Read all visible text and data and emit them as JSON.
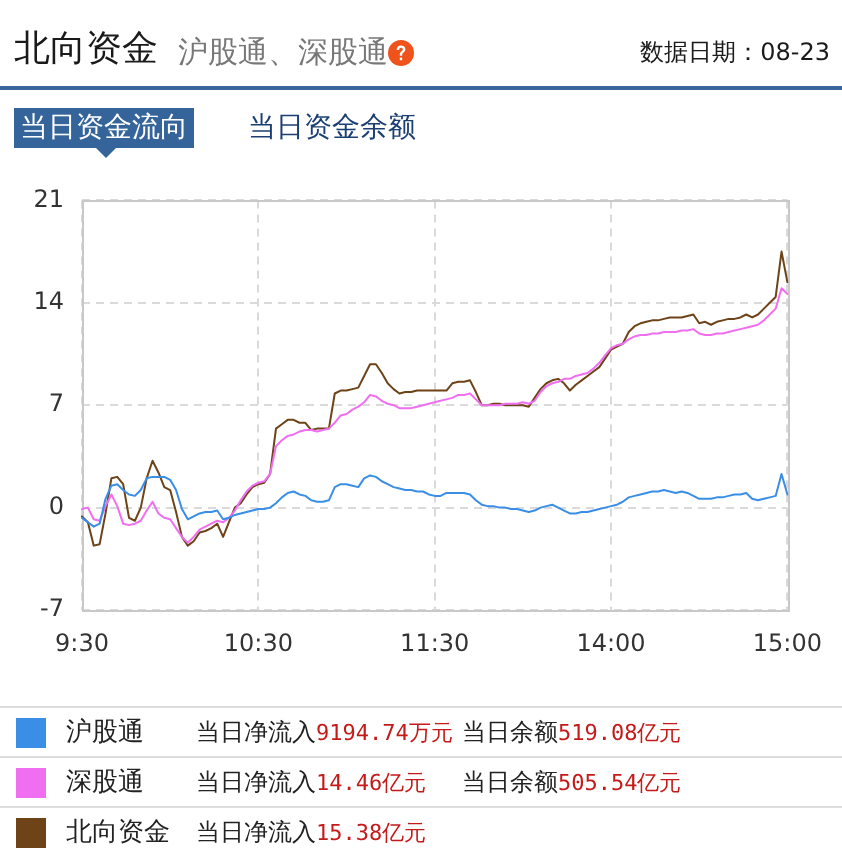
{
  "chart_data": {
    "type": "line",
    "title": "北向资金",
    "subtitle": "沪股通、深股通",
    "annotations": [
      "数据日期：08-23",
      "当日资金流向",
      "当日资金余额",
      "当日净流入9194.74万元",
      "当日余额519.08亿元",
      "当日净流入14.46亿元",
      "当日余额505.54亿元",
      "当日净流入15.38亿元"
    ],
    "categories": [
      "9:30",
      null,
      null,
      null,
      null,
      null,
      null,
      null,
      null,
      null,
      null,
      null,
      null,
      null,
      null,
      null,
      null,
      null,
      null,
      null,
      null,
      null,
      null,
      null,
      null,
      null,
      null,
      null,
      null,
      null,
      "10:30",
      null,
      null,
      null,
      null,
      null,
      null,
      null,
      null,
      null,
      null,
      null,
      null,
      null,
      null,
      null,
      null,
      null,
      null,
      null,
      null,
      null,
      null,
      null,
      null,
      null,
      null,
      null,
      null,
      null,
      "11:30",
      null,
      null,
      null,
      null,
      null,
      null,
      null,
      null,
      null,
      null,
      null,
      null,
      null,
      null,
      null,
      null,
      null,
      null,
      null,
      null,
      null,
      null,
      null,
      null,
      null,
      null,
      null,
      null,
      null,
      "14:00",
      null,
      null,
      null,
      null,
      null,
      null,
      null,
      null,
      null,
      null,
      null,
      null,
      null,
      null,
      null,
      null,
      null,
      null,
      null,
      null,
      null,
      null,
      null,
      null,
      null,
      null,
      null,
      null,
      null,
      "15:00"
    ],
    "ylim": [
      -7,
      21
    ],
    "yticks": [
      -7,
      0,
      7,
      14,
      21
    ],
    "grid": true,
    "legend": "bottom",
    "series": [
      {
        "name": "沪股通",
        "color": "#3a8ee6",
        "values": [
          -0.7,
          -1.0,
          -1.3,
          -1.1,
          0.6,
          1.5,
          1.6,
          1.2,
          0.9,
          0.8,
          1.2,
          2.0,
          2.1,
          2.1,
          2.1,
          1.9,
          1.2,
          -0.1,
          -0.8,
          -0.6,
          -0.4,
          -0.3,
          -0.3,
          -0.2,
          -0.8,
          -0.7,
          -0.5,
          -0.4,
          -0.3,
          -0.2,
          -0.1,
          -0.1,
          0.0,
          0.3,
          0.7,
          1.0,
          1.1,
          0.9,
          0.8,
          0.5,
          0.4,
          0.4,
          0.5,
          1.4,
          1.6,
          1.6,
          1.5,
          1.4,
          2.0,
          2.2,
          2.1,
          1.8,
          1.6,
          1.4,
          1.3,
          1.2,
          1.2,
          1.1,
          1.1,
          0.9,
          0.8,
          0.8,
          1.0,
          1.0,
          1.0,
          1.0,
          0.9,
          0.5,
          0.2,
          0.1,
          0.1,
          0.0,
          0.0,
          -0.1,
          -0.1,
          -0.2,
          -0.3,
          -0.2,
          0.0,
          0.1,
          0.2,
          0.0,
          -0.2,
          -0.4,
          -0.4,
          -0.3,
          -0.3,
          -0.2,
          -0.1,
          0.0,
          0.1,
          0.2,
          0.4,
          0.7,
          0.8,
          0.9,
          1.0,
          1.1,
          1.1,
          1.2,
          1.1,
          1.0,
          1.1,
          1.0,
          0.8,
          0.6,
          0.6,
          0.6,
          0.7,
          0.7,
          0.8,
          0.9,
          0.9,
          1.0,
          0.6,
          0.5,
          0.6,
          0.7,
          0.8,
          2.3,
          0.9
        ]
      },
      {
        "name": "深股通",
        "color": "#f06ef0",
        "values": [
          -0.1,
          0.0,
          -0.8,
          -0.9,
          0.1,
          0.9,
          0.1,
          -1.1,
          -1.2,
          -1.1,
          -0.9,
          -0.2,
          0.4,
          -0.4,
          -0.7,
          -0.8,
          -1.4,
          -2.0,
          -2.4,
          -2.0,
          -1.5,
          -1.3,
          -1.1,
          -0.9,
          -1.0,
          -0.7,
          -0.2,
          0.5,
          1.1,
          1.5,
          1.7,
          1.8,
          2.3,
          4.2,
          4.6,
          4.9,
          5.0,
          5.2,
          5.3,
          5.3,
          5.2,
          5.3,
          5.4,
          5.8,
          6.3,
          6.4,
          6.7,
          6.9,
          7.2,
          7.7,
          7.6,
          7.3,
          7.1,
          7.0,
          6.8,
          6.8,
          6.8,
          6.9,
          7.0,
          7.1,
          7.2,
          7.3,
          7.4,
          7.5,
          7.7,
          7.7,
          7.8,
          7.4,
          7.0,
          7.0,
          7.0,
          7.0,
          7.1,
          7.1,
          7.1,
          7.2,
          7.1,
          7.3,
          7.9,
          8.3,
          8.5,
          8.6,
          8.8,
          8.8,
          9.0,
          9.1,
          9.2,
          9.5,
          9.9,
          10.4,
          10.9,
          11.1,
          11.2,
          11.5,
          11.7,
          11.8,
          11.8,
          11.9,
          11.9,
          12.0,
          12.0,
          12.0,
          12.1,
          12.1,
          12.2,
          11.9,
          11.8,
          11.8,
          11.9,
          11.9,
          12.0,
          12.1,
          12.2,
          12.3,
          12.4,
          12.5,
          12.8,
          13.2,
          13.6,
          15.0,
          14.6
        ]
      },
      {
        "name": "北向资金",
        "color": "#6e4318",
        "values": [
          -0.6,
          -1.0,
          -2.6,
          -2.5,
          -0.4,
          2.0,
          2.1,
          1.6,
          -0.7,
          -0.9,
          0.0,
          2.0,
          3.2,
          2.4,
          1.4,
          1.2,
          -0.3,
          -2.0,
          -2.6,
          -2.3,
          -1.7,
          -1.6,
          -1.4,
          -1.1,
          -2.0,
          -1.0,
          0.0,
          0.3,
          0.9,
          1.4,
          1.6,
          1.7,
          2.3,
          5.4,
          5.7,
          6.0,
          6.0,
          5.8,
          5.8,
          5.3,
          5.4,
          5.4,
          5.4,
          7.8,
          8.0,
          8.0,
          8.1,
          8.2,
          9.0,
          9.8,
          9.8,
          9.2,
          8.5,
          8.1,
          7.8,
          7.9,
          7.9,
          8.0,
          8.0,
          8.0,
          8.0,
          8.0,
          8.0,
          8.5,
          8.6,
          8.6,
          8.7,
          7.9,
          7.0,
          7.0,
          7.1,
          7.1,
          7.0,
          7.0,
          7.0,
          7.0,
          6.9,
          7.5,
          8.1,
          8.5,
          8.7,
          8.8,
          8.5,
          8.0,
          8.4,
          8.7,
          9.0,
          9.3,
          9.6,
          10.2,
          10.8,
          11.0,
          11.2,
          12.0,
          12.4,
          12.6,
          12.7,
          12.8,
          12.8,
          12.9,
          13.0,
          13.0,
          13.0,
          13.1,
          13.2,
          12.6,
          12.7,
          12.5,
          12.7,
          12.8,
          12.9,
          12.9,
          13.0,
          13.2,
          13.0,
          13.2,
          13.6,
          14.0,
          14.4,
          17.5,
          15.4
        ]
      }
    ]
  }
}
